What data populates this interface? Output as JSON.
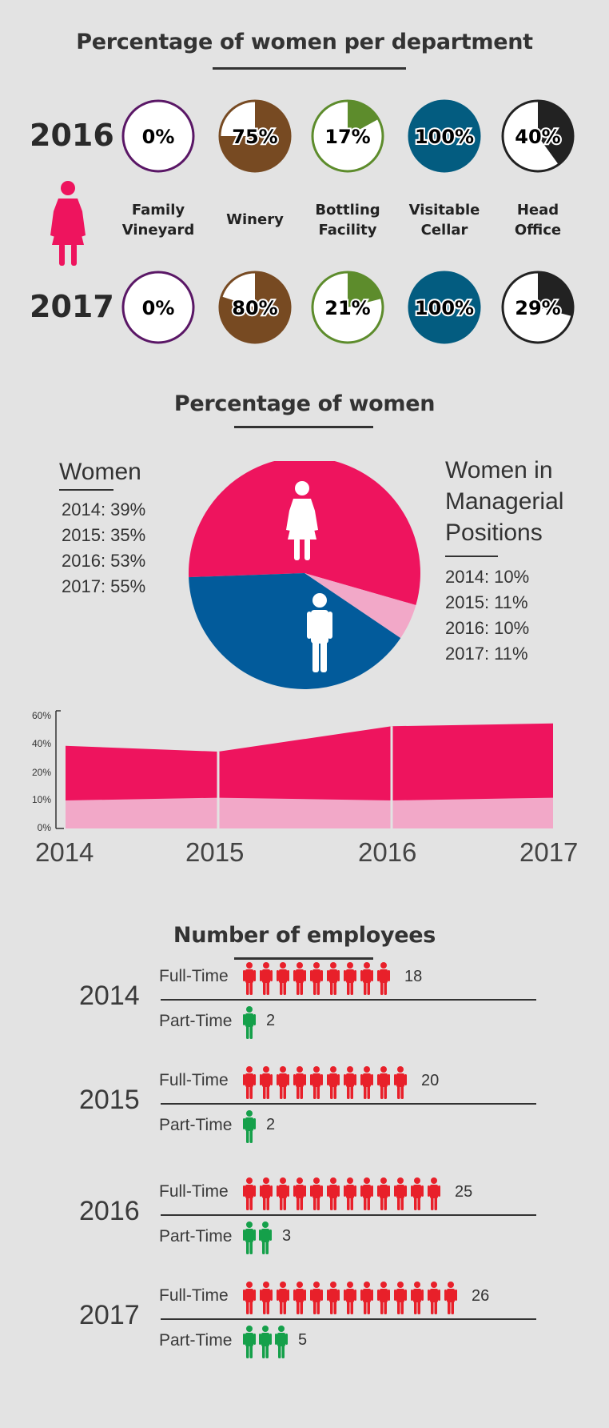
{
  "dept_section": {
    "title": "Percentage of women per department",
    "years": [
      "2016",
      "2017"
    ],
    "departments": [
      {
        "label_lines": [
          "Family",
          "Vineyard"
        ],
        "color": "#5a1766",
        "fill": "#ffffff",
        "values": [
          0,
          0
        ],
        "labels": [
          "0%",
          "0%"
        ]
      },
      {
        "label_lines": [
          "Winery",
          ""
        ],
        "color": "#774a22",
        "fill": "#ffffff",
        "values": [
          75,
          80
        ],
        "labels": [
          "75%",
          "80%"
        ]
      },
      {
        "label_lines": [
          "Bottling",
          "Facility"
        ],
        "color": "#5d8c2c",
        "fill": "#ffffff",
        "values": [
          17,
          21
        ],
        "labels": [
          "17%",
          "21%"
        ]
      },
      {
        "label_lines": [
          "Visitable",
          "Cellar"
        ],
        "color": "#035c80",
        "fill": "#ffffff",
        "values": [
          100,
          100
        ],
        "labels": [
          "100%",
          "100%"
        ]
      },
      {
        "label_lines": [
          "Head",
          "Office"
        ],
        "color": "#222222",
        "fill": "#ffffff",
        "values": [
          40,
          29
        ],
        "labels": [
          "40%",
          "29%"
        ]
      }
    ]
  },
  "women_section": {
    "title": "Percentage of women",
    "women_heading": "Women",
    "women_lines": [
      "2014: 39%",
      "2015: 35%",
      "2016: 53%",
      "2017: 55%"
    ],
    "managerial_heading_lines": [
      "Women in",
      "Managerial",
      "Positions"
    ],
    "managerial_lines": [
      "2014: 10%",
      "2015: 11%",
      "2016: 10%",
      "2017: 11%"
    ]
  },
  "chart_data": [
    {
      "type": "pie",
      "slices": [
        {
          "label": "women",
          "value": 55,
          "color": "#ee145e"
        },
        {
          "label": "women in managerial positions",
          "value": 5,
          "color": "#f2a8c8"
        },
        {
          "label": "men",
          "value": 40,
          "color": "#025b9b"
        }
      ],
      "icons": [
        "woman-icon",
        "man-icon"
      ]
    },
    {
      "type": "area",
      "x": [
        "2014",
        "2015",
        "2016",
        "2017"
      ],
      "series": [
        {
          "values": [
            39,
            35,
            53,
            55
          ],
          "color": "#ee145e"
        },
        {
          "values": [
            10,
            11,
            10,
            11
          ],
          "color": "#f2a8c8"
        }
      ],
      "yticks": [
        "0%",
        "10%",
        "20%",
        "40%",
        "60%"
      ],
      "grid": false,
      "legend": "none"
    },
    {
      "type": "pictogram",
      "title": "Number of employees",
      "years": [
        {
          "year": "2014",
          "full_time": 18,
          "part_time": 2,
          "full_time_icons": 9,
          "part_time_icons": 1
        },
        {
          "year": "2015",
          "full_time": 20,
          "part_time": 2,
          "full_time_icons": 10,
          "part_time_icons": 1
        },
        {
          "year": "2016",
          "full_time": 25,
          "part_time": 3,
          "full_time_icons": 12,
          "part_time_icons": 2
        },
        {
          "year": "2017",
          "full_time": 26,
          "part_time": 5,
          "full_time_icons": 13,
          "part_time_icons": 3
        }
      ],
      "full_time_label": "Full-Time",
      "part_time_label": "Part-Time",
      "full_time_color": "#e8202a",
      "part_time_color": "#15a04a"
    }
  ],
  "woman_icon_color": "#ee145e"
}
